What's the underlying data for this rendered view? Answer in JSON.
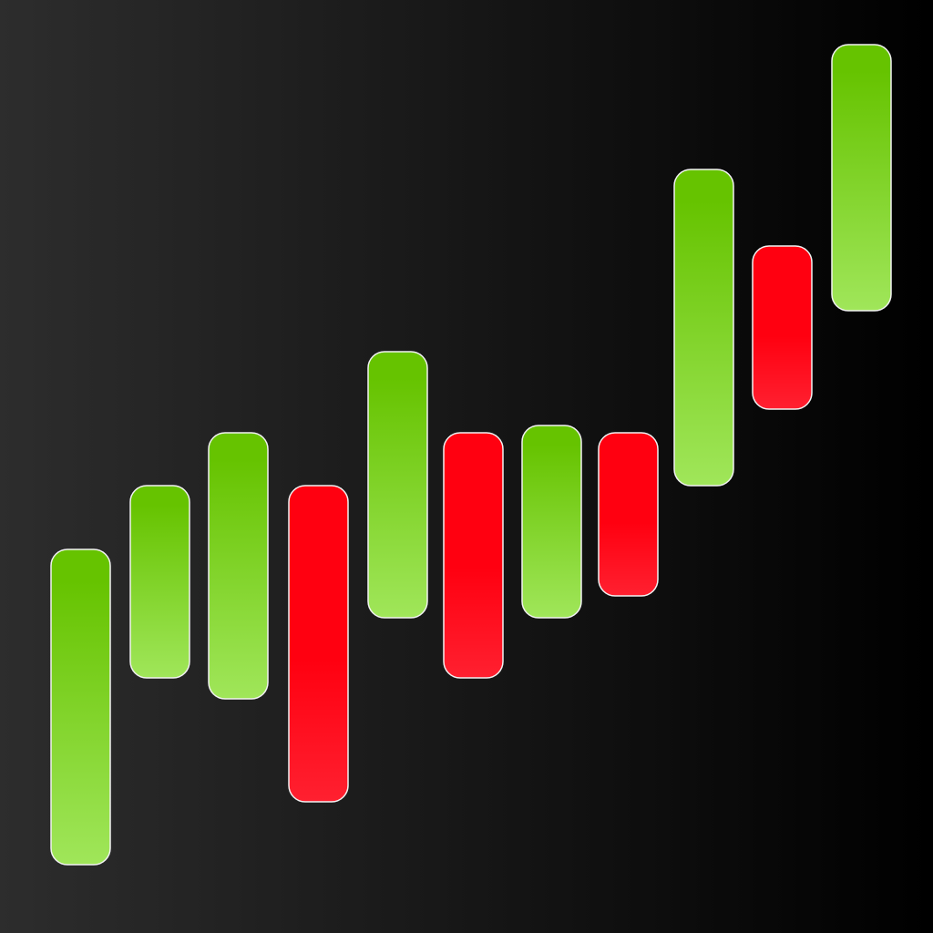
{
  "colors": {
    "background_left": "#2d2d2d",
    "background_right": "#000000",
    "up_top": "#66c300",
    "up_bottom": "#a0e65a",
    "down_top": "#ff0010",
    "down_bottom": "#ff2030",
    "bar_outline": "#f2f2f2"
  },
  "candles": [
    {
      "direction": "up"
    },
    {
      "direction": "up"
    },
    {
      "direction": "up"
    },
    {
      "direction": "down"
    },
    {
      "direction": "up"
    },
    {
      "direction": "down"
    },
    {
      "direction": "up"
    },
    {
      "direction": "down"
    },
    {
      "direction": "up"
    },
    {
      "direction": "down"
    },
    {
      "direction": "up"
    }
  ]
}
